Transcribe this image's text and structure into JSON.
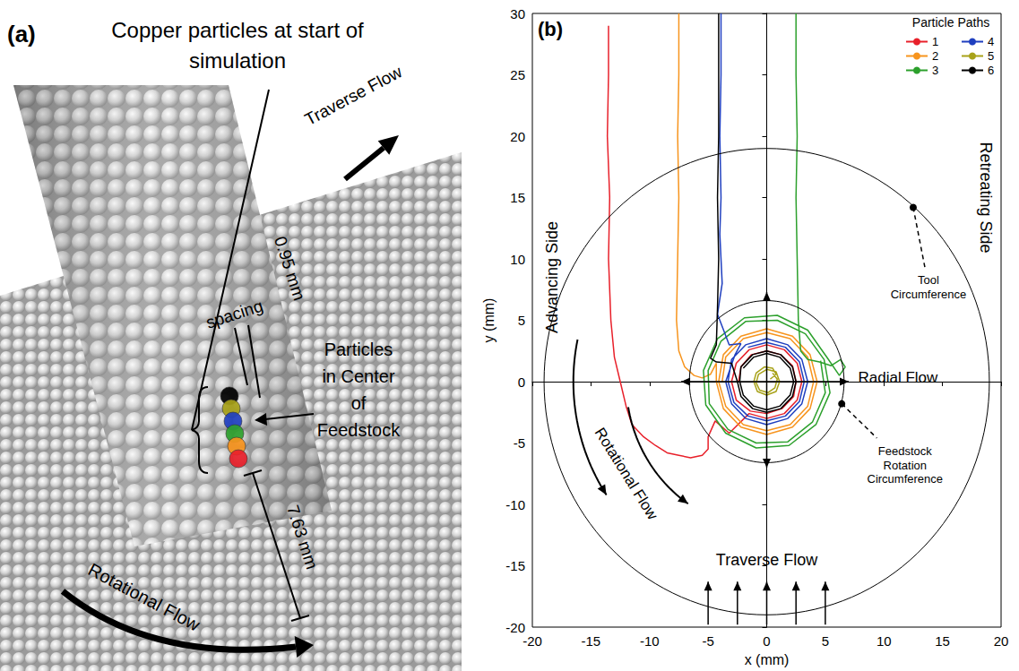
{
  "panel_a": {
    "label": "(a)",
    "title": "Copper particles at start of simulation",
    "traverse_flow": "Traverse Flow",
    "spacing_value": "0.95 mm",
    "spacing_text": "spacing",
    "particles_note": "Particles in Center of Feedstock",
    "height": "7.63 mm",
    "rotational_flow": "Rotational Flow"
  },
  "chart_data": {
    "type": "line",
    "panel_label": "(b)",
    "x_label": "x (mm)",
    "y_label": "y (mm)",
    "xlim": [
      -20,
      20
    ],
    "ylim": [
      -20,
      30
    ],
    "xticks": [
      -20,
      -15,
      -10,
      -5,
      0,
      5,
      10,
      15,
      20
    ],
    "yticks": [
      -20,
      -15,
      -10,
      -5,
      0,
      5,
      10,
      15,
      20,
      25,
      30
    ],
    "grid": false,
    "legend": "top-right",
    "legend_title": "Particle Paths",
    "side_labels": {
      "left": "Advancing Side",
      "right": "Retreating Side"
    },
    "radial_flow": "Radial Flow",
    "rotational_flow": "Rotational Flow",
    "traverse_flow": "Traverse Flow",
    "circles": [
      {
        "label": "Tool Circumference",
        "radius": 19,
        "point": [
          12.5,
          14.2
        ]
      },
      {
        "label": "Feedstock Rotation Circumference",
        "radius": 6.6,
        "point": [
          6.4,
          -1.8
        ]
      }
    ],
    "series": [
      {
        "name": "1",
        "color": "#e8202a",
        "values": [
          [
            -13.5,
            29
          ],
          [
            -13.5,
            25
          ],
          [
            -13.6,
            20
          ],
          [
            -13.4,
            15
          ],
          [
            -13.5,
            10
          ],
          [
            -13.3,
            5
          ],
          [
            -13,
            2
          ],
          [
            -12.5,
            0
          ],
          [
            -12,
            -2
          ],
          [
            -11.5,
            -3.5
          ],
          [
            -10.5,
            -4.5
          ],
          [
            -9.5,
            -5.2
          ],
          [
            -8.5,
            -5.8
          ],
          [
            -7.5,
            -6
          ],
          [
            -6.5,
            -6.2
          ],
          [
            -5.5,
            -6
          ],
          [
            -5,
            -5.5
          ],
          [
            -5,
            -4.5
          ],
          [
            -4.4,
            -3.2
          ],
          [
            -3.2,
            -4.2
          ],
          [
            -1.5,
            -2.6
          ],
          [
            0,
            -3
          ],
          [
            1.5,
            -2.6
          ],
          [
            2.6,
            -1.5
          ],
          [
            3,
            0
          ],
          [
            2.6,
            1.5
          ],
          [
            1.5,
            2.6
          ],
          [
            0,
            3
          ],
          [
            -1.5,
            2.6
          ],
          [
            -2.6,
            1.5
          ],
          [
            -3,
            0
          ],
          [
            -2.6,
            -1.5
          ],
          [
            -1.4,
            -2.4
          ],
          [
            0,
            -2.6
          ],
          [
            1.3,
            -2.2
          ],
          [
            2.3,
            -1.2
          ],
          [
            2.5,
            0
          ],
          [
            2.2,
            1.3
          ],
          [
            1.2,
            2.2
          ],
          [
            0,
            2.5
          ],
          [
            -1.3,
            2.2
          ],
          [
            -2.2,
            1.2
          ],
          [
            -2.4,
            0
          ]
        ]
      },
      {
        "name": "2",
        "color": "#f7941d",
        "values": [
          [
            -7.5,
            30
          ],
          [
            -7.5,
            25
          ],
          [
            -7.6,
            20
          ],
          [
            -7.5,
            15
          ],
          [
            -7.6,
            10
          ],
          [
            -7.7,
            5
          ],
          [
            -7.5,
            2.5
          ],
          [
            -7,
            1.2
          ],
          [
            -6.2,
            0.5
          ],
          [
            -5.5,
            0.3
          ],
          [
            -4.8,
            0.6
          ],
          [
            -4.3,
            1.5
          ],
          [
            -4.3,
            0
          ],
          [
            -3.7,
            -2.2
          ],
          [
            -2.2,
            -3.7
          ],
          [
            0,
            -4.3
          ],
          [
            2.2,
            -3.7
          ],
          [
            3.7,
            -2.2
          ],
          [
            4.3,
            0
          ],
          [
            3.7,
            2.2
          ],
          [
            2.2,
            3.7
          ],
          [
            0,
            4.3
          ],
          [
            -2.2,
            3.7
          ],
          [
            -3.7,
            2.2
          ],
          [
            -4.1,
            0
          ],
          [
            -3.5,
            -2
          ],
          [
            -2,
            -3.5
          ],
          [
            0,
            -4
          ],
          [
            2,
            -3.5
          ],
          [
            3.5,
            -2
          ],
          [
            4,
            0
          ],
          [
            3.5,
            2
          ],
          [
            2,
            3.5
          ],
          [
            0,
            4
          ],
          [
            -2,
            3.5
          ],
          [
            -3.5,
            2
          ],
          [
            -3.8,
            0
          ]
        ]
      },
      {
        "name": "3",
        "color": "#2ca02c",
        "values": [
          [
            2.5,
            30
          ],
          [
            2.5,
            25
          ],
          [
            2.6,
            20
          ],
          [
            2.5,
            15
          ],
          [
            2.6,
            10
          ],
          [
            2.7,
            5
          ],
          [
            2.9,
            2.5
          ],
          [
            3.5,
            1.8
          ],
          [
            4.5,
            1.6
          ],
          [
            5.5,
            1.3
          ],
          [
            6.3,
            1.8
          ],
          [
            6.7,
            1.2
          ],
          [
            6.2,
            0.5
          ],
          [
            5.2,
            1.9
          ],
          [
            3.5,
            4.2
          ],
          [
            0.9,
            5.4
          ],
          [
            -1.9,
            5.2
          ],
          [
            -4.2,
            3.5
          ],
          [
            -5.4,
            0.9
          ],
          [
            -5.2,
            -1.9
          ],
          [
            -3.5,
            -4.2
          ],
          [
            -0.9,
            -5.4
          ],
          [
            1.9,
            -5.2
          ],
          [
            4.2,
            -3.5
          ],
          [
            5.4,
            -0.9
          ],
          [
            4.9,
            1.8
          ],
          [
            3.3,
            3.9
          ],
          [
            0.9,
            5
          ],
          [
            -1.8,
            4.9
          ],
          [
            -3.9,
            3.3
          ],
          [
            -5,
            0.9
          ],
          [
            -4.9,
            -1.8
          ],
          [
            -3.3,
            -3.9
          ],
          [
            -0.9,
            -5
          ],
          [
            1.8,
            -4.9
          ],
          [
            3.9,
            -3.3
          ],
          [
            5,
            -0.9
          ],
          [
            4.6,
            1.7
          ]
        ]
      },
      {
        "name": "4",
        "color": "#1f3fbf",
        "values": [
          [
            -3.9,
            30
          ],
          [
            -3.9,
            25
          ],
          [
            -4,
            20
          ],
          [
            -3.9,
            15
          ],
          [
            -4,
            12
          ],
          [
            -3.8,
            8
          ],
          [
            -4.2,
            5.5
          ],
          [
            -3.6,
            4
          ],
          [
            -3.2,
            3
          ],
          [
            -2.2,
            3.1
          ],
          [
            -2.7,
            2.2
          ],
          [
            -3.5,
            0
          ],
          [
            -3,
            -1.8
          ],
          [
            -1.8,
            -3
          ],
          [
            0,
            -3.5
          ],
          [
            1.8,
            -3
          ],
          [
            3,
            -1.8
          ],
          [
            3.5,
            0
          ],
          [
            3,
            1.8
          ],
          [
            1.8,
            3
          ],
          [
            0,
            3.5
          ],
          [
            -1.8,
            3
          ],
          [
            -3,
            1.8
          ],
          [
            -3.3,
            0
          ],
          [
            -2.8,
            -1.7
          ],
          [
            -1.6,
            -2.8
          ],
          [
            0,
            -3.2
          ],
          [
            1.6,
            -2.8
          ],
          [
            2.8,
            -1.6
          ],
          [
            3.2,
            0
          ],
          [
            2.8,
            1.6
          ],
          [
            1.6,
            2.8
          ],
          [
            0,
            3.2
          ],
          [
            -1.6,
            2.8
          ]
        ]
      },
      {
        "name": "5",
        "color": "#a8a219",
        "values": [
          [
            0.3,
            0.2
          ],
          [
            0.8,
            0.6
          ],
          [
            0.5,
            1.1
          ],
          [
            -0.2,
            1.2
          ],
          [
            -0.9,
            0.7
          ],
          [
            -1.1,
            0
          ],
          [
            -0.8,
            -0.8
          ],
          [
            0,
            -1.1
          ],
          [
            0.8,
            -0.8
          ],
          [
            1.1,
            0
          ],
          [
            0.8,
            0.8
          ],
          [
            0,
            1
          ],
          [
            -0.7,
            0.6
          ],
          [
            -0.9,
            -0.1
          ],
          [
            -0.6,
            -0.7
          ],
          [
            0.1,
            -0.9
          ],
          [
            0.7,
            -0.5
          ],
          [
            0.9,
            0.2
          ],
          [
            0.5,
            0.7
          ]
        ]
      },
      {
        "name": "6",
        "color": "#000000",
        "values": [
          [
            -4.1,
            30
          ],
          [
            -4.1,
            25
          ],
          [
            -4.1,
            20
          ],
          [
            -4.2,
            15
          ],
          [
            -4.1,
            10
          ],
          [
            -4.2,
            6
          ],
          [
            -4.3,
            3
          ],
          [
            -4.8,
            1.9
          ],
          [
            -4.3,
            1.6
          ],
          [
            -3,
            1.5
          ],
          [
            -2.5,
            0
          ],
          [
            -2.2,
            -1.2
          ],
          [
            -1.2,
            -2.2
          ],
          [
            0,
            -2.5
          ],
          [
            1.2,
            -2.2
          ],
          [
            2.2,
            -1.2
          ],
          [
            2.5,
            0
          ],
          [
            2.2,
            1.2
          ],
          [
            1.2,
            2.2
          ],
          [
            0,
            2.5
          ],
          [
            -1.2,
            2.2
          ],
          [
            -2.2,
            1.2
          ],
          [
            -2.3,
            0
          ],
          [
            -2,
            -1.1
          ],
          [
            -1.1,
            -2
          ],
          [
            0,
            -2.3
          ],
          [
            1.1,
            -2
          ],
          [
            2,
            -1.1
          ],
          [
            2.3,
            0
          ],
          [
            2,
            1.1
          ],
          [
            1.1,
            2
          ],
          [
            0,
            2.3
          ],
          [
            -1.1,
            2
          ],
          [
            -2,
            1.1
          ]
        ]
      }
    ]
  }
}
